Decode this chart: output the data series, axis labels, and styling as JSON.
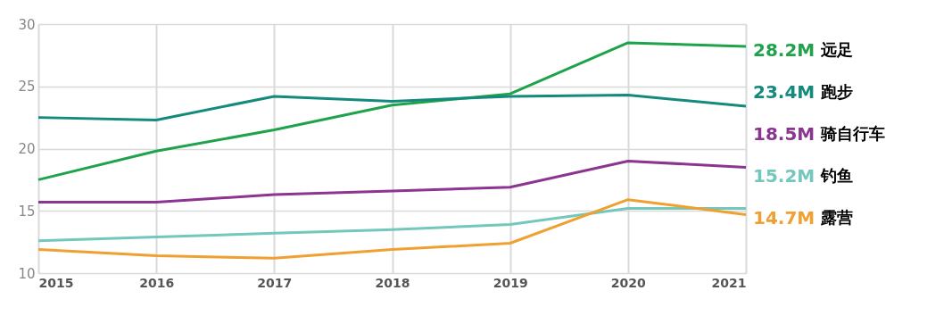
{
  "chart_data": {
    "type": "line",
    "x": [
      2015,
      2016,
      2017,
      2018,
      2019,
      2020,
      2021
    ],
    "xlim": [
      2015,
      2021
    ],
    "xticks": [
      2015,
      2016,
      2017,
      2018,
      2019,
      2020,
      2021
    ],
    "ylim": [
      10,
      30
    ],
    "yticks": [
      10,
      15,
      20,
      25,
      30
    ],
    "grid": true,
    "legend": false,
    "marker": "none",
    "line_style": "solid",
    "series": [
      {
        "name": "远足",
        "color": "#1fa34a",
        "values": [
          17.5,
          19.8,
          21.5,
          23.5,
          24.4,
          28.5,
          28.2
        ],
        "value_labels": [
          null,
          null,
          null,
          null,
          null,
          null,
          "28.2M"
        ]
      },
      {
        "name": "跑步",
        "color": "#138a7b",
        "values": [
          22.5,
          22.3,
          24.2,
          23.8,
          24.2,
          24.3,
          23.4
        ],
        "value_labels": [
          null,
          null,
          null,
          null,
          null,
          null,
          "23.4M"
        ]
      },
      {
        "name": "骑自行车",
        "color": "#8b3591",
        "values": [
          15.7,
          15.7,
          16.3,
          16.6,
          16.9,
          19.0,
          18.5
        ],
        "value_labels": [
          null,
          null,
          null,
          null,
          null,
          null,
          "18.5M"
        ]
      },
      {
        "name": "钓鱼",
        "color": "#74c7bb",
        "values": [
          12.6,
          12.9,
          13.2,
          13.5,
          13.9,
          15.2,
          15.2
        ],
        "value_labels": [
          null,
          null,
          null,
          null,
          null,
          null,
          "15.2M"
        ]
      },
      {
        "name": "露营",
        "color": "#f0a030",
        "values": [
          11.9,
          11.4,
          11.2,
          11.9,
          12.4,
          15.9,
          14.7
        ],
        "value_labels": [
          null,
          null,
          null,
          null,
          null,
          null,
          "14.7M"
        ]
      }
    ]
  }
}
